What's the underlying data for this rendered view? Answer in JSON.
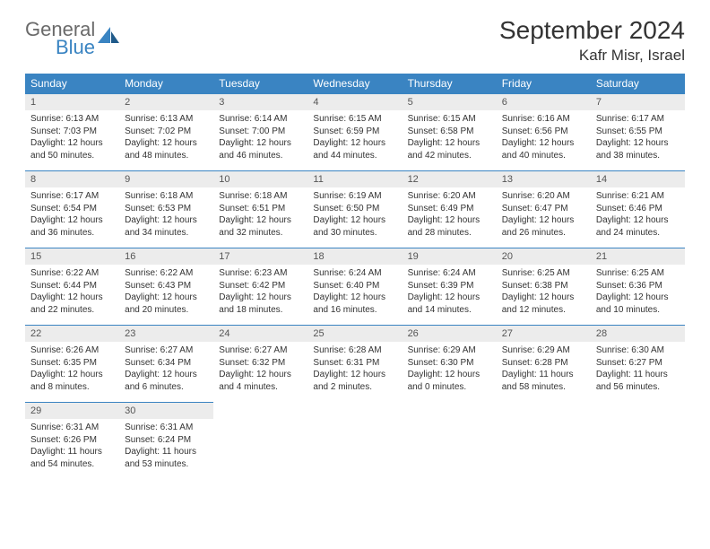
{
  "logo": {
    "general": "General",
    "blue": "Blue"
  },
  "title": "September 2024",
  "location": "Kafr Misr, Israel",
  "colors": {
    "header_bg": "#3a84c2",
    "header_text": "#ffffff",
    "daynum_bg": "#ececec",
    "daynum_text": "#555555",
    "body_text": "#333333",
    "border": "#3a84c2"
  },
  "weekdays": [
    "Sunday",
    "Monday",
    "Tuesday",
    "Wednesday",
    "Thursday",
    "Friday",
    "Saturday"
  ],
  "weeks": [
    [
      {
        "n": "1",
        "sr": "6:13 AM",
        "ss": "7:03 PM",
        "dl": "12 hours and 50 minutes."
      },
      {
        "n": "2",
        "sr": "6:13 AM",
        "ss": "7:02 PM",
        "dl": "12 hours and 48 minutes."
      },
      {
        "n": "3",
        "sr": "6:14 AM",
        "ss": "7:00 PM",
        "dl": "12 hours and 46 minutes."
      },
      {
        "n": "4",
        "sr": "6:15 AM",
        "ss": "6:59 PM",
        "dl": "12 hours and 44 minutes."
      },
      {
        "n": "5",
        "sr": "6:15 AM",
        "ss": "6:58 PM",
        "dl": "12 hours and 42 minutes."
      },
      {
        "n": "6",
        "sr": "6:16 AM",
        "ss": "6:56 PM",
        "dl": "12 hours and 40 minutes."
      },
      {
        "n": "7",
        "sr": "6:17 AM",
        "ss": "6:55 PM",
        "dl": "12 hours and 38 minutes."
      }
    ],
    [
      {
        "n": "8",
        "sr": "6:17 AM",
        "ss": "6:54 PM",
        "dl": "12 hours and 36 minutes."
      },
      {
        "n": "9",
        "sr": "6:18 AM",
        "ss": "6:53 PM",
        "dl": "12 hours and 34 minutes."
      },
      {
        "n": "10",
        "sr": "6:18 AM",
        "ss": "6:51 PM",
        "dl": "12 hours and 32 minutes."
      },
      {
        "n": "11",
        "sr": "6:19 AM",
        "ss": "6:50 PM",
        "dl": "12 hours and 30 minutes."
      },
      {
        "n": "12",
        "sr": "6:20 AM",
        "ss": "6:49 PM",
        "dl": "12 hours and 28 minutes."
      },
      {
        "n": "13",
        "sr": "6:20 AM",
        "ss": "6:47 PM",
        "dl": "12 hours and 26 minutes."
      },
      {
        "n": "14",
        "sr": "6:21 AM",
        "ss": "6:46 PM",
        "dl": "12 hours and 24 minutes."
      }
    ],
    [
      {
        "n": "15",
        "sr": "6:22 AM",
        "ss": "6:44 PM",
        "dl": "12 hours and 22 minutes."
      },
      {
        "n": "16",
        "sr": "6:22 AM",
        "ss": "6:43 PM",
        "dl": "12 hours and 20 minutes."
      },
      {
        "n": "17",
        "sr": "6:23 AM",
        "ss": "6:42 PM",
        "dl": "12 hours and 18 minutes."
      },
      {
        "n": "18",
        "sr": "6:24 AM",
        "ss": "6:40 PM",
        "dl": "12 hours and 16 minutes."
      },
      {
        "n": "19",
        "sr": "6:24 AM",
        "ss": "6:39 PM",
        "dl": "12 hours and 14 minutes."
      },
      {
        "n": "20",
        "sr": "6:25 AM",
        "ss": "6:38 PM",
        "dl": "12 hours and 12 minutes."
      },
      {
        "n": "21",
        "sr": "6:25 AM",
        "ss": "6:36 PM",
        "dl": "12 hours and 10 minutes."
      }
    ],
    [
      {
        "n": "22",
        "sr": "6:26 AM",
        "ss": "6:35 PM",
        "dl": "12 hours and 8 minutes."
      },
      {
        "n": "23",
        "sr": "6:27 AM",
        "ss": "6:34 PM",
        "dl": "12 hours and 6 minutes."
      },
      {
        "n": "24",
        "sr": "6:27 AM",
        "ss": "6:32 PM",
        "dl": "12 hours and 4 minutes."
      },
      {
        "n": "25",
        "sr": "6:28 AM",
        "ss": "6:31 PM",
        "dl": "12 hours and 2 minutes."
      },
      {
        "n": "26",
        "sr": "6:29 AM",
        "ss": "6:30 PM",
        "dl": "12 hours and 0 minutes."
      },
      {
        "n": "27",
        "sr": "6:29 AM",
        "ss": "6:28 PM",
        "dl": "11 hours and 58 minutes."
      },
      {
        "n": "28",
        "sr": "6:30 AM",
        "ss": "6:27 PM",
        "dl": "11 hours and 56 minutes."
      }
    ],
    [
      {
        "n": "29",
        "sr": "6:31 AM",
        "ss": "6:26 PM",
        "dl": "11 hours and 54 minutes."
      },
      {
        "n": "30",
        "sr": "6:31 AM",
        "ss": "6:24 PM",
        "dl": "11 hours and 53 minutes."
      },
      null,
      null,
      null,
      null,
      null
    ]
  ],
  "labels": {
    "sunrise": "Sunrise:",
    "sunset": "Sunset:",
    "daylight": "Daylight:"
  }
}
